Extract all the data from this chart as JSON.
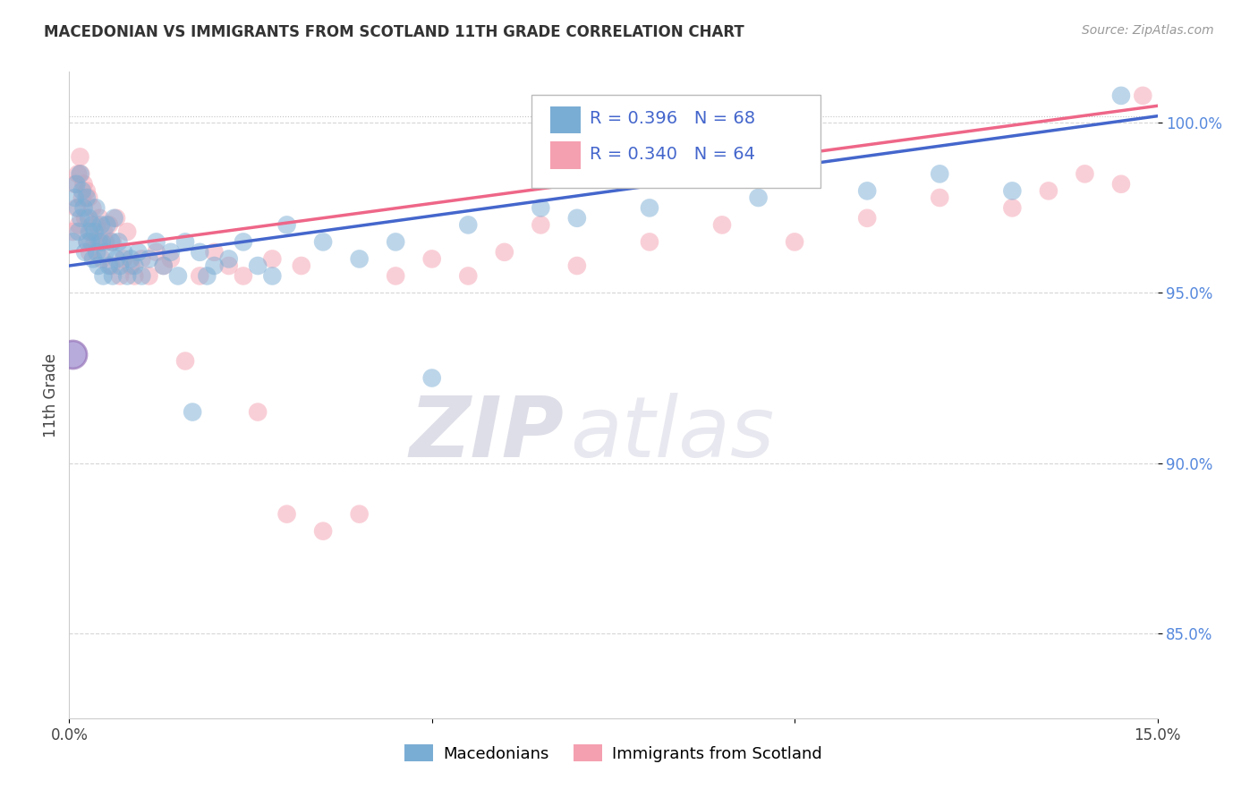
{
  "title": "MACEDONIAN VS IMMIGRANTS FROM SCOTLAND 11TH GRADE CORRELATION CHART",
  "source": "Source: ZipAtlas.com",
  "ylabel": "11th Grade",
  "xlim": [
    0.0,
    15.0
  ],
  "ylim": [
    82.5,
    101.5
  ],
  "blue_R": 0.396,
  "blue_N": 68,
  "pink_R": 0.34,
  "pink_N": 64,
  "blue_color": "#7AADD4",
  "pink_color": "#F4A0B0",
  "blue_line_color": "#4466CC",
  "pink_line_color": "#EE6688",
  "watermark_zip": "ZIP",
  "watermark_atlas": "atlas",
  "legend_label_blue": "Macedonians",
  "legend_label_pink": "Immigrants from Scotland",
  "blue_x": [
    0.05,
    0.08,
    0.1,
    0.12,
    0.13,
    0.15,
    0.16,
    0.18,
    0.2,
    0.22,
    0.24,
    0.25,
    0.27,
    0.28,
    0.3,
    0.32,
    0.33,
    0.35,
    0.37,
    0.38,
    0.4,
    0.42,
    0.44,
    0.45,
    0.47,
    0.5,
    0.52,
    0.55,
    0.58,
    0.6,
    0.62,
    0.65,
    0.68,
    0.7,
    0.75,
    0.8,
    0.85,
    0.9,
    0.95,
    1.0,
    1.1,
    1.2,
    1.3,
    1.4,
    1.5,
    1.6,
    1.7,
    1.8,
    1.9,
    2.0,
    2.2,
    2.4,
    2.6,
    2.8,
    3.0,
    3.5,
    4.0,
    4.5,
    5.0,
    5.5,
    6.5,
    7.0,
    8.0,
    9.5,
    11.0,
    12.0,
    13.0,
    14.5
  ],
  "blue_y": [
    96.5,
    97.8,
    98.2,
    97.5,
    96.8,
    98.5,
    97.2,
    98.0,
    97.5,
    96.2,
    97.8,
    96.5,
    97.2,
    96.8,
    96.5,
    97.0,
    96.0,
    96.8,
    97.5,
    96.2,
    95.8,
    96.5,
    97.0,
    96.5,
    95.5,
    96.2,
    97.0,
    95.8,
    96.5,
    95.5,
    97.2,
    96.0,
    96.5,
    95.8,
    96.2,
    95.5,
    96.0,
    95.8,
    96.2,
    95.5,
    96.0,
    96.5,
    95.8,
    96.2,
    95.5,
    96.5,
    91.5,
    96.2,
    95.5,
    95.8,
    96.0,
    96.5,
    95.8,
    95.5,
    97.0,
    96.5,
    96.0,
    96.5,
    92.5,
    97.0,
    97.5,
    97.2,
    97.5,
    97.8,
    98.0,
    98.5,
    98.0,
    100.8
  ],
  "pink_x": [
    0.05,
    0.08,
    0.1,
    0.12,
    0.13,
    0.15,
    0.16,
    0.18,
    0.2,
    0.22,
    0.24,
    0.25,
    0.27,
    0.28,
    0.3,
    0.32,
    0.35,
    0.38,
    0.4,
    0.42,
    0.45,
    0.48,
    0.5,
    0.55,
    0.58,
    0.6,
    0.65,
    0.7,
    0.75,
    0.8,
    0.85,
    0.9,
    1.0,
    1.1,
    1.2,
    1.3,
    1.4,
    1.6,
    1.8,
    2.0,
    2.2,
    2.4,
    2.6,
    2.8,
    3.0,
    3.2,
    3.5,
    4.0,
    4.5,
    5.0,
    5.5,
    6.0,
    6.5,
    7.0,
    8.0,
    9.0,
    10.0,
    11.0,
    12.0,
    13.0,
    13.5,
    14.0,
    14.5,
    14.8
  ],
  "pink_y": [
    96.8,
    98.2,
    97.5,
    98.5,
    97.0,
    99.0,
    98.5,
    97.8,
    98.2,
    97.2,
    98.0,
    96.5,
    97.8,
    96.2,
    96.8,
    97.5,
    96.5,
    97.0,
    96.5,
    97.2,
    96.0,
    96.8,
    96.5,
    97.0,
    95.8,
    96.5,
    97.2,
    95.5,
    96.0,
    96.8,
    95.8,
    95.5,
    96.0,
    95.5,
    96.2,
    95.8,
    96.0,
    93.0,
    95.5,
    96.2,
    95.8,
    95.5,
    91.5,
    96.0,
    88.5,
    95.8,
    88.0,
    88.5,
    95.5,
    96.0,
    95.5,
    96.2,
    97.0,
    95.8,
    96.5,
    97.0,
    96.5,
    97.2,
    97.8,
    97.5,
    98.0,
    98.5,
    98.2,
    100.8
  ],
  "trend_blue_x0": 0.0,
  "trend_blue_y0": 95.8,
  "trend_blue_x1": 15.0,
  "trend_blue_y1": 100.2,
  "trend_pink_x0": 0.0,
  "trend_pink_y0": 96.2,
  "trend_pink_x1": 15.0,
  "trend_pink_y1": 100.5
}
